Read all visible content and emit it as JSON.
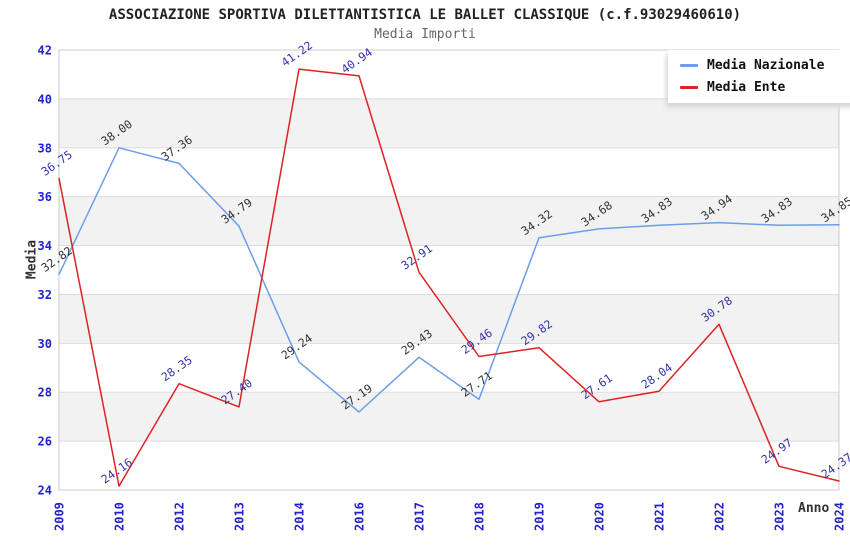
{
  "header": {
    "title": "ASSOCIAZIONE SPORTIVA DILETTANTISTICA LE BALLET CLASSIQUE (c.f.93029460610)",
    "subtitle": "Media Importi"
  },
  "chart_data": {
    "type": "line",
    "title": "ASSOCIAZIONE SPORTIVA DILETTANTISTICA LE BALLET CLASSIQUE (c.f.93029460610)",
    "subtitle": "Media Importi",
    "xlabel": "Anno",
    "ylabel": "Media",
    "ylim": [
      24,
      42
    ],
    "ytick_step": 2,
    "grid": true,
    "band_pairs": [
      [
        26,
        28
      ],
      [
        30,
        32
      ],
      [
        34,
        36
      ],
      [
        38,
        40
      ]
    ],
    "legend_position": "top-right",
    "categories": [
      "2009",
      "2010",
      "2012",
      "2013",
      "2014",
      "2016",
      "2017",
      "2018",
      "2019",
      "2020",
      "2021",
      "2022",
      "2023",
      "2024"
    ],
    "series": [
      {
        "name": "Media Nazionale",
        "color": "#6d9eeb",
        "label_color": "#333333",
        "values": [
          32.82,
          38.0,
          37.36,
          34.79,
          29.24,
          27.19,
          29.43,
          27.71,
          34.32,
          34.68,
          34.83,
          34.94,
          34.83,
          34.85
        ]
      },
      {
        "name": "Media Ente",
        "color": "#dd2222",
        "label_color": "#3333aa",
        "values": [
          36.75,
          24.16,
          28.35,
          27.4,
          41.22,
          40.94,
          32.91,
          29.46,
          29.82,
          27.61,
          28.04,
          30.78,
          24.97,
          24.37
        ]
      }
    ]
  },
  "colors": {
    "band_fill": "#f2f2f2",
    "gridline": "#dddddd",
    "plot_border": "#cccccc",
    "tick_label": "#2222cc"
  }
}
